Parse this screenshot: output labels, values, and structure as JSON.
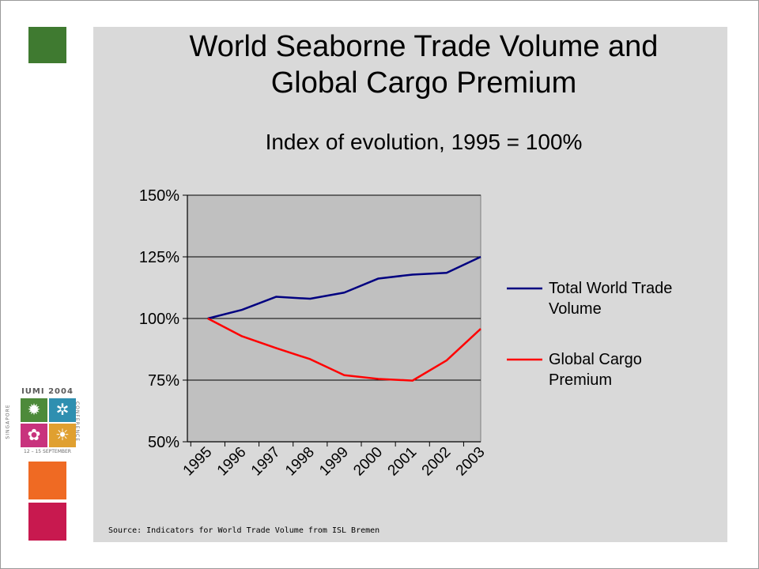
{
  "slide": {
    "title_line1": "World Seaborne Trade Volume and",
    "title_line2": "Global Cargo Premium",
    "subtitle": "Index of evolution, 1995 = 100%",
    "source": "Source: Indicators for World Trade Volume from ISL Bremen",
    "colors": {
      "panel": "#d9d9d9",
      "plot_area": "#c0c0c0",
      "square_green": "#3f7a30",
      "square_orange": "#ef6a23",
      "square_magenta": "#c8194f"
    }
  },
  "logo": {
    "top_text": "IUMI 2004",
    "left_text": "SINGAPORE",
    "right_text": "CONFERENCE",
    "bottom_text": "12 – 15 SEPTEMBER",
    "icons": [
      "palm-tree-icon",
      "pinwheel-icon",
      "orchid-icon",
      "lion-icon"
    ]
  },
  "chart_data": {
    "type": "line",
    "x": [
      "1995",
      "1996",
      "1997",
      "1998",
      "1999",
      "2000",
      "2001",
      "2002",
      "2003"
    ],
    "ylim": [
      50,
      150
    ],
    "yticks": [
      50,
      75,
      100,
      125,
      150
    ],
    "ytick_labels": [
      "50%",
      "75%",
      "100%",
      "125%",
      "150%"
    ],
    "grid": "horizontal",
    "legend_position": "right",
    "series": [
      {
        "name": "Total World Trade Volume",
        "legend_lines": [
          "Total World Trade",
          "Volume"
        ],
        "color": "#000080",
        "values": [
          100,
          103.5,
          108.8,
          108,
          110.5,
          116.2,
          117.8,
          118.5,
          125
        ]
      },
      {
        "name": "Global Cargo Premium",
        "legend_lines": [
          "Global Cargo",
          "Premium"
        ],
        "color": "#ff0000",
        "values": [
          100,
          92.8,
          88,
          83.5,
          77,
          75.5,
          74.8,
          83,
          95.8
        ]
      }
    ]
  }
}
